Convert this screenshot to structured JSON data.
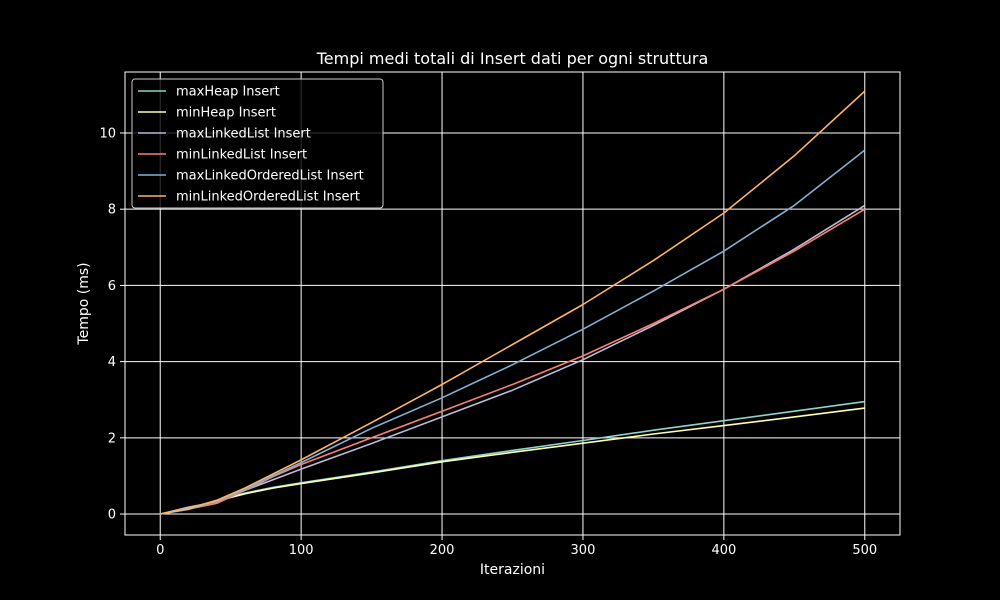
{
  "chart_data": {
    "type": "line",
    "title": "Tempi medi totali di Insert dati per ogni struttura",
    "xlabel": "Iterazioni",
    "ylabel": "Tempo (ms)",
    "xlim": [
      -25,
      525
    ],
    "ylim": [
      -0.55,
      11.6
    ],
    "xticks": [
      0,
      100,
      200,
      300,
      400,
      500
    ],
    "yticks": [
      0,
      2,
      4,
      6,
      8,
      10
    ],
    "grid": true,
    "legend_position": "top-left",
    "x": [
      0,
      20,
      40,
      60,
      80,
      100,
      150,
      200,
      250,
      300,
      350,
      400,
      450,
      500
    ],
    "series": [
      {
        "name": "maxHeap Insert",
        "color": "#8dd3c7",
        "values": [
          0,
          0.15,
          0.35,
          0.55,
          0.7,
          0.82,
          1.1,
          1.4,
          1.67,
          1.93,
          2.2,
          2.45,
          2.7,
          2.95
        ]
      },
      {
        "name": "minHeap Insert",
        "color": "#ffffb3",
        "values": [
          0,
          0.15,
          0.34,
          0.53,
          0.68,
          0.8,
          1.08,
          1.37,
          1.62,
          1.86,
          2.1,
          2.32,
          2.55,
          2.78
        ]
      },
      {
        "name": "maxLinkedList Insert",
        "color": "#bebada",
        "values": [
          0,
          0.18,
          0.32,
          0.62,
          0.9,
          1.18,
          1.85,
          2.55,
          3.25,
          4.05,
          4.95,
          5.9,
          6.95,
          8.1
        ]
      },
      {
        "name": "minLinkedList Insert",
        "color": "#fb8072",
        "values": [
          0,
          0.13,
          0.28,
          0.62,
          0.98,
          1.3,
          2.0,
          2.7,
          3.4,
          4.15,
          5.0,
          5.9,
          6.9,
          8.0
        ]
      },
      {
        "name": "maxLinkedOrderedList Insert",
        "color": "#80b1d3",
        "values": [
          0,
          0.12,
          0.34,
          0.64,
          1.0,
          1.35,
          2.25,
          3.05,
          3.92,
          4.85,
          5.85,
          6.9,
          8.1,
          9.55
        ]
      },
      {
        "name": "minLinkedOrderedList Insert",
        "color": "#fdb462",
        "values": [
          0,
          0.14,
          0.36,
          0.68,
          1.05,
          1.42,
          2.4,
          3.4,
          4.45,
          5.5,
          6.65,
          7.9,
          9.4,
          11.1
        ]
      }
    ]
  }
}
